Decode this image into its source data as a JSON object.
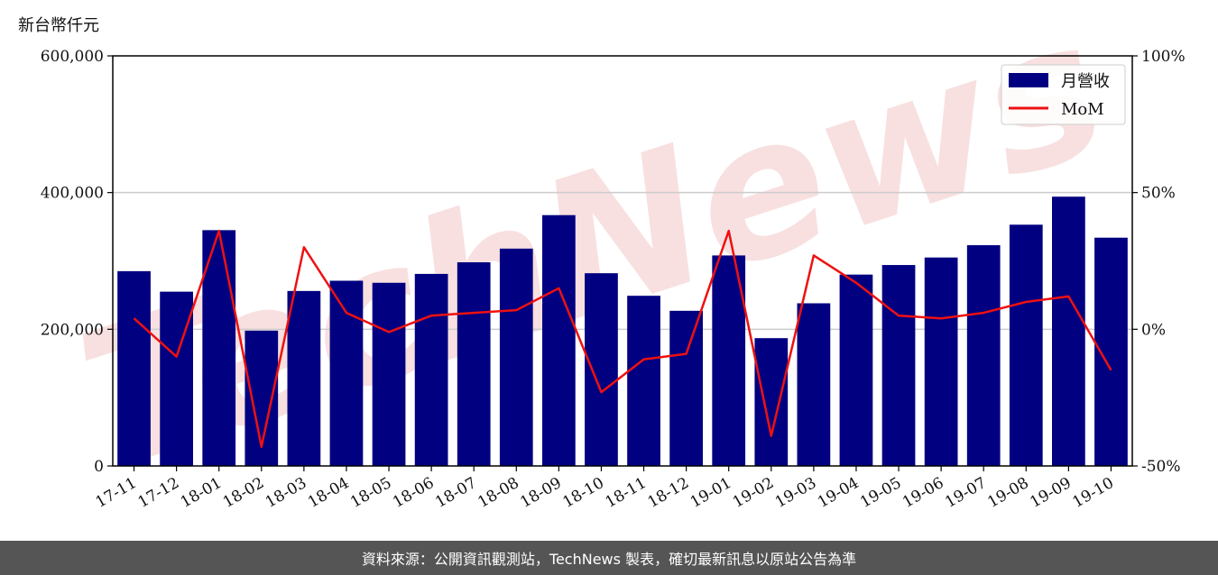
{
  "unit_label": "新台幣仟元",
  "footer": "資料來源：公開資訊觀測站，TechNews 製表，確切最新訊息以原站公告為準",
  "watermark": "TechNews",
  "colors": {
    "bar": "#000080",
    "line": "#ee1111",
    "footer_bg": "#555555",
    "watermark": "#f3c8c8"
  },
  "chart_data": {
    "type": "bar",
    "categories": [
      "17-11",
      "17-12",
      "18-01",
      "18-02",
      "18-03",
      "18-04",
      "18-05",
      "18-06",
      "18-07",
      "18-08",
      "18-09",
      "18-10",
      "18-11",
      "18-12",
      "19-01",
      "19-02",
      "19-03",
      "19-04",
      "19-05",
      "19-06",
      "19-07",
      "19-08",
      "19-09",
      "19-10"
    ],
    "series": [
      {
        "name": "月營收",
        "type": "bar",
        "axis": "left",
        "values": [
          285000,
          255000,
          345000,
          198000,
          256000,
          271000,
          268000,
          281000,
          298000,
          318000,
          367000,
          282000,
          249000,
          227000,
          308000,
          187000,
          238000,
          280000,
          294000,
          305000,
          323000,
          353000,
          394000,
          334000
        ]
      },
      {
        "name": "MoM",
        "type": "line",
        "axis": "right",
        "values": [
          4,
          -10,
          36,
          -43,
          30,
          6,
          -1,
          5,
          6,
          7,
          15,
          -23,
          -11,
          -9,
          36,
          -39,
          27,
          17,
          5,
          4,
          6,
          10,
          12,
          -15
        ]
      }
    ],
    "y_left": {
      "min": 0,
      "max": 600000,
      "ticks": [
        0,
        200000,
        400000,
        600000
      ],
      "tick_labels": [
        "0",
        "200,000",
        "400,000",
        "600,000"
      ]
    },
    "y_right": {
      "min": -50,
      "max": 100,
      "ticks": [
        -50,
        0,
        50,
        100
      ],
      "tick_labels": [
        "-50%",
        "0%",
        "50%",
        "100%"
      ]
    },
    "grid": "horizontal",
    "legend": "top-right"
  }
}
